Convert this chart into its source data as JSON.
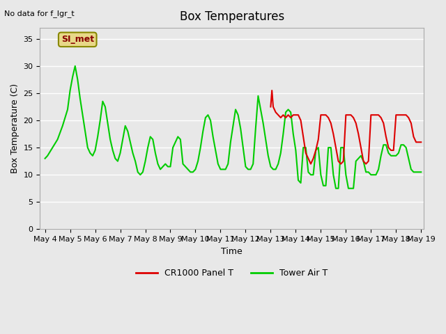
{
  "title": "Box Temperatures",
  "xlabel": "Time",
  "ylabel": "Box Temperature (C)",
  "top_left_text": "No data for f_lgr_t",
  "annotation_box": "SI_met",
  "ylim": [
    0,
    37
  ],
  "yticks": [
    0,
    5,
    10,
    15,
    20,
    25,
    30,
    35
  ],
  "background_color": "#e8e8e8",
  "plot_bg_color": "#e8e8e8",
  "grid_color": "white",
  "legend": [
    {
      "label": "CR1000 Panel T",
      "color": "#dd0000"
    },
    {
      "label": "Tower Air T",
      "color": "#00cc00"
    }
  ],
  "green_x": [
    4.0,
    4.1,
    4.3,
    4.5,
    4.7,
    4.9,
    5.0,
    5.1,
    5.2,
    5.3,
    5.4,
    5.5,
    5.6,
    5.7,
    5.8,
    5.9,
    6.0,
    6.1,
    6.2,
    6.3,
    6.4,
    6.5,
    6.6,
    6.7,
    6.8,
    6.9,
    7.0,
    7.1,
    7.2,
    7.3,
    7.4,
    7.5,
    7.6,
    7.7,
    7.8,
    7.9,
    8.0,
    8.1,
    8.2,
    8.3,
    8.4,
    8.5,
    8.6,
    8.7,
    8.8,
    8.9,
    9.0,
    9.1,
    9.2,
    9.3,
    9.4,
    9.5,
    9.6,
    9.7,
    9.8,
    9.9,
    10.0,
    10.1,
    10.2,
    10.3,
    10.4,
    10.5,
    10.6,
    10.7,
    10.8,
    10.9,
    11.0,
    11.1,
    11.2,
    11.3,
    11.4,
    11.5,
    11.6,
    11.7,
    11.8,
    11.9,
    12.0,
    12.1,
    12.2,
    12.3,
    12.4,
    12.5,
    12.6,
    12.7,
    12.8,
    12.9,
    13.0,
    13.1,
    13.2,
    13.3,
    13.4,
    13.5,
    13.6,
    13.7,
    13.8,
    13.9,
    14.0,
    14.1,
    14.2,
    14.3,
    14.4,
    14.5,
    14.6,
    14.7,
    14.8,
    14.9,
    15.0,
    15.1,
    15.2,
    15.3,
    15.4,
    15.5,
    15.6,
    15.7,
    15.8,
    15.9,
    16.0,
    16.1,
    16.2,
    16.3,
    16.4,
    16.5,
    16.6,
    16.7,
    16.8,
    16.9,
    17.0,
    17.1,
    17.2,
    17.3,
    17.4,
    17.5,
    17.6,
    17.7,
    17.8,
    17.9,
    18.0,
    18.1,
    18.2,
    18.3,
    18.4,
    18.5,
    18.6,
    18.7,
    18.8,
    18.9,
    19.0
  ],
  "green_y": [
    13.0,
    13.5,
    15.0,
    16.5,
    19.0,
    22.0,
    25.5,
    28.0,
    30.0,
    27.5,
    24.0,
    21.0,
    18.0,
    15.0,
    14.0,
    13.5,
    14.5,
    17.0,
    20.0,
    23.5,
    22.5,
    19.5,
    16.5,
    14.5,
    13.0,
    12.5,
    14.0,
    16.5,
    19.0,
    18.0,
    16.0,
    14.0,
    12.5,
    10.5,
    10.0,
    10.5,
    12.5,
    15.0,
    17.0,
    16.5,
    14.0,
    12.0,
    11.0,
    11.5,
    12.0,
    11.5,
    11.5,
    15.0,
    16.0,
    17.0,
    16.5,
    12.0,
    11.5,
    11.0,
    10.5,
    10.5,
    11.0,
    12.5,
    15.0,
    18.0,
    20.5,
    21.0,
    20.0,
    17.0,
    14.5,
    12.0,
    11.0,
    11.0,
    11.0,
    12.0,
    16.0,
    19.0,
    22.0,
    21.0,
    18.5,
    15.0,
    11.5,
    11.0,
    11.0,
    12.0,
    18.5,
    24.5,
    22.0,
    19.5,
    16.5,
    13.5,
    11.5,
    11.0,
    11.0,
    12.0,
    14.0,
    17.5,
    21.5,
    22.0,
    21.5,
    17.5,
    14.5,
    9.0,
    8.5,
    15.0,
    15.0,
    10.5,
    10.0,
    10.0,
    14.5,
    15.0,
    10.0,
    8.0,
    8.0,
    15.0,
    15.0,
    10.0,
    7.5,
    7.5,
    15.0,
    15.0,
    10.0,
    7.5,
    7.5,
    7.5,
    12.5,
    13.0,
    13.5,
    12.5,
    10.5,
    10.5,
    10.0,
    10.0,
    10.0,
    11.0,
    13.5,
    15.5,
    15.5,
    14.0,
    13.5,
    13.5,
    13.5,
    14.0,
    15.5,
    15.5,
    15.0,
    13.0,
    11.0,
    10.5,
    10.5,
    10.5,
    10.5
  ],
  "red_x": [
    13.0,
    13.05,
    13.1,
    13.2,
    13.3,
    13.4,
    13.5,
    13.6,
    13.7,
    13.8,
    13.9,
    14.0,
    14.1,
    14.2,
    14.3,
    14.4,
    14.5,
    14.6,
    14.7,
    14.8,
    14.9,
    15.0,
    15.1,
    15.2,
    15.3,
    15.4,
    15.5,
    15.6,
    15.7,
    15.8,
    15.9,
    16.0,
    16.1,
    16.2,
    16.3,
    16.4,
    16.5,
    16.6,
    16.7,
    16.8,
    16.9,
    17.0,
    17.1,
    17.2,
    17.3,
    17.4,
    17.5,
    17.6,
    17.7,
    17.8,
    17.9,
    18.0,
    18.1,
    18.2,
    18.3,
    18.4,
    18.5,
    18.6,
    18.7,
    18.8,
    18.9,
    19.0
  ],
  "red_y": [
    22.5,
    25.5,
    22.5,
    21.5,
    21.0,
    20.5,
    21.0,
    20.5,
    21.0,
    20.5,
    21.0,
    21.0,
    21.0,
    20.0,
    17.0,
    14.0,
    13.0,
    12.0,
    13.0,
    14.5,
    16.5,
    21.0,
    21.0,
    21.0,
    20.5,
    19.5,
    17.5,
    15.0,
    12.5,
    12.0,
    12.5,
    21.0,
    21.0,
    21.0,
    20.5,
    19.5,
    17.5,
    15.0,
    12.5,
    12.0,
    12.5,
    21.0,
    21.0,
    21.0,
    21.0,
    20.5,
    19.5,
    17.0,
    15.0,
    14.5,
    14.5,
    21.0,
    21.0,
    21.0,
    21.0,
    21.0,
    20.5,
    19.5,
    17.0,
    16.0,
    16.0,
    16.0
  ],
  "xstart_day": 4,
  "xend_day": 19,
  "xtick_days": [
    4,
    5,
    6,
    7,
    8,
    9,
    10,
    11,
    12,
    13,
    14,
    15,
    16,
    17,
    18,
    19
  ]
}
